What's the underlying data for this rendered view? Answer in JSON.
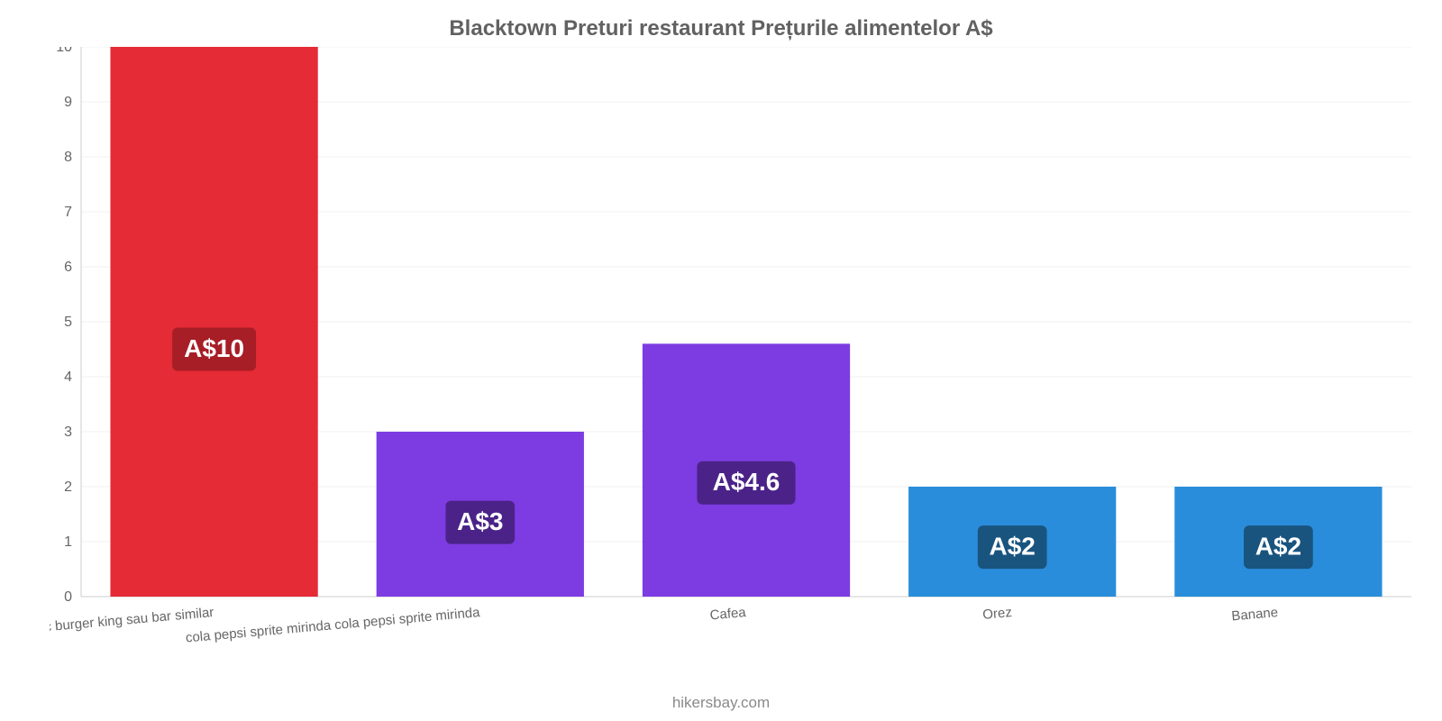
{
  "chart": {
    "type": "bar",
    "title": "Blacktown Preturi restaurant Prețurile alimentelor A$",
    "title_color": "#616161",
    "title_fontsize": 24,
    "credit": "hikersbay.com",
    "credit_color": "#8a8a8a",
    "background_color": "#ffffff",
    "grid_color": "#f0f0f0",
    "axis_color": "#cccccc",
    "y": {
      "min": 0,
      "max": 10,
      "ticks": [
        0,
        1,
        2,
        3,
        4,
        5,
        6,
        7,
        8,
        9,
        10
      ],
      "tick_fontsize": 16,
      "tick_color": "#666666"
    },
    "x": {
      "tick_fontsize": 15,
      "tick_color": "#666666",
      "rotation_deg": -5
    },
    "bar_width_ratio": 0.78,
    "label_fontsize": 28,
    "label_text_color": "#ffffff",
    "items": [
      {
        "category": "mac burger king sau bar similar",
        "value": 10,
        "display": "A$10",
        "bar_color": "#e52b35",
        "label_bg": "#a71e26"
      },
      {
        "category": "cola pepsi sprite mirinda cola pepsi sprite mirinda",
        "value": 3,
        "display": "A$3",
        "bar_color": "#7d3ce2",
        "label_bg": "#4b2388"
      },
      {
        "category": "Cafea",
        "value": 4.6,
        "display": "A$4.6",
        "bar_color": "#7d3ce2",
        "label_bg": "#4b2388"
      },
      {
        "category": "Orez",
        "value": 2,
        "display": "A$2",
        "bar_color": "#2a8ddb",
        "label_bg": "#19547f"
      },
      {
        "category": "Banane",
        "value": 2,
        "display": "A$2",
        "bar_color": "#2a8ddb",
        "label_bg": "#19547f"
      }
    ]
  }
}
